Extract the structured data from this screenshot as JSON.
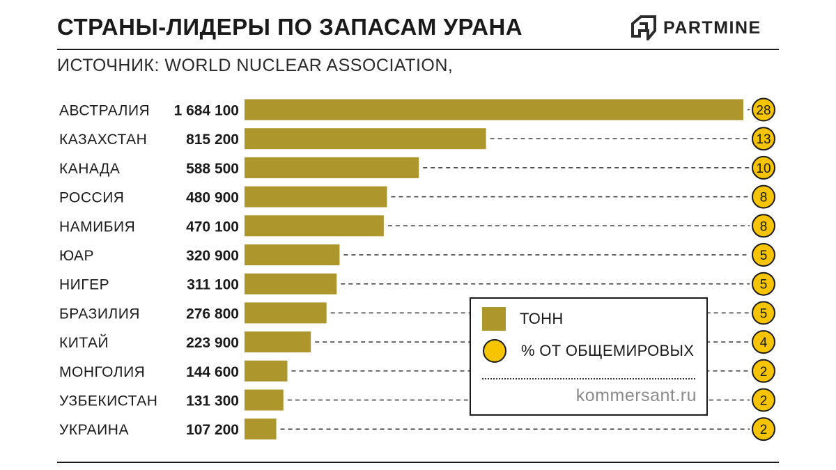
{
  "header": {
    "title": "СТРАНЫ-ЛИДЕРЫ ПО ЗАПАСАМ УРАНА",
    "brand": "PARTMINE",
    "source": "ИСТОЧНИК: WORLD NUCLEAR ASSOCIATION,"
  },
  "legend": {
    "tons_label": "ТОНН",
    "percent_label": "% ОТ ОБЩЕМИРОВЫХ",
    "site": "kommersant.ru"
  },
  "colors": {
    "bar": "#ad962b",
    "circle": "#f6c400",
    "text": "#1a1a1a"
  },
  "chart_data": {
    "type": "bar",
    "orientation": "horizontal",
    "title": "СТРАНЫ-ЛИДЕРЫ ПО ЗАПАСАМ УРАНА",
    "categories": [
      "АВСТРАЛИЯ",
      "КАЗАХСТАН",
      "КАНАДА",
      "РОССИЯ",
      "НАМИБИЯ",
      "ЮАР",
      "НИГЕР",
      "БРАЗИЛИЯ",
      "КИТАЙ",
      "МОНГОЛИЯ",
      "УЗБЕКИСТАН",
      "УКРАИНА"
    ],
    "value_labels": [
      "1 684 100",
      "815 200",
      "588 500",
      "480 900",
      "470 100",
      "320 900",
      "311 100",
      "276 800",
      "223 900",
      "144 600",
      "131 300",
      "107 200"
    ],
    "series": [
      {
        "name": "ТОНН",
        "values": [
          1684100,
          815200,
          588500,
          480900,
          470100,
          320900,
          311100,
          276800,
          223900,
          144600,
          131300,
          107200
        ]
      },
      {
        "name": "% ОТ ОБЩЕМИРОВЫХ",
        "values": [
          28,
          13,
          10,
          8,
          8,
          5,
          5,
          5,
          4,
          2,
          2,
          2
        ]
      }
    ],
    "xlim": [
      0,
      1684100
    ],
    "grid": false,
    "legend_position": "bottom-right"
  }
}
